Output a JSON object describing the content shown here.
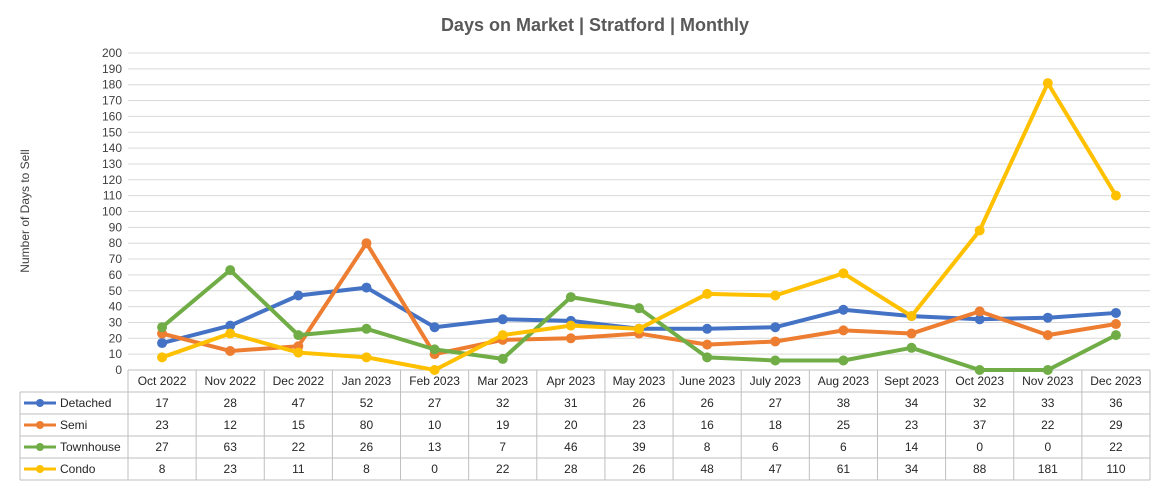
{
  "chart_data": {
    "type": "line",
    "title": "Days on Market | Stratford | Monthly",
    "ylabel": "Number of Days to Sell",
    "xlabel": "",
    "ylim": [
      0,
      200
    ],
    "ytick_step": 10,
    "grid": true,
    "legend": "data table below chart",
    "categories": [
      "Oct 2022",
      "Nov 2022",
      "Dec 2022",
      "Jan 2023",
      "Feb 2023",
      "Mar 2023",
      "Apr 2023",
      "May 2023",
      "June 2023",
      "July 2023",
      "Aug 2023",
      "Sept 2023",
      "Oct 2023",
      "Nov 2023",
      "Dec 2023"
    ],
    "series": [
      {
        "name": "Detached",
        "color": "#4472c4",
        "values": [
          17,
          28,
          47,
          52,
          27,
          32,
          31,
          26,
          26,
          27,
          38,
          34,
          32,
          33,
          36
        ]
      },
      {
        "name": "Semi",
        "color": "#ed7d31",
        "values": [
          23,
          12,
          15,
          80,
          10,
          19,
          20,
          23,
          16,
          18,
          25,
          23,
          37,
          22,
          29
        ]
      },
      {
        "name": "Townhouse",
        "color": "#70ad47",
        "values": [
          27,
          63,
          22,
          26,
          13,
          7,
          46,
          39,
          8,
          6,
          6,
          14,
          0,
          0,
          22
        ]
      },
      {
        "name": "Condo",
        "color": "#ffc000",
        "values": [
          8,
          23,
          11,
          8,
          0,
          22,
          28,
          26,
          48,
          47,
          61,
          34,
          88,
          181,
          110
        ]
      }
    ]
  }
}
